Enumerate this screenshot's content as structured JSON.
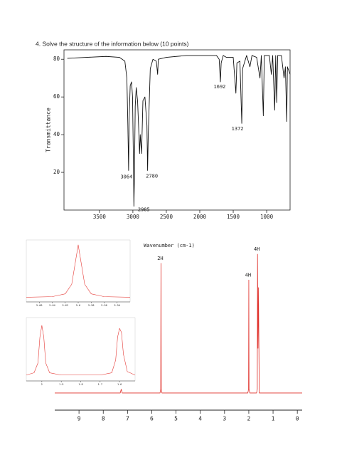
{
  "heading": "4. Solve the structure of the information below (10 points)",
  "chart_data": [
    {
      "type": "line",
      "xlabel": "Wavenumber (cm-1)",
      "ylabel": "Transmittance",
      "xlim": [
        4030,
        650
      ],
      "ylim": [
        0,
        85
      ],
      "xticks": [
        3500,
        3000,
        2500,
        2000,
        1500,
        1000
      ],
      "yticks": [
        20,
        40,
        60,
        80
      ],
      "color": "#111111",
      "x": [
        3980,
        3700,
        3400,
        3200,
        3120,
        3090,
        3075,
        3064,
        3055,
        3040,
        3020,
        3005,
        2990,
        2985,
        2978,
        2965,
        2950,
        2930,
        2915,
        2900,
        2890,
        2870,
        2850,
        2820,
        2790,
        2780,
        2770,
        2740,
        2700,
        2650,
        2630,
        2620,
        2500,
        2200,
        1900,
        1750,
        1710,
        1692,
        1680,
        1650,
        1600,
        1500,
        1460,
        1445,
        1400,
        1372,
        1360,
        1300,
        1250,
        1220,
        1150,
        1100,
        1080,
        1050,
        1035,
        960,
        930,
        910,
        880,
        865,
        850,
        835,
        780,
        740,
        720,
        700,
        690,
        660,
        650
      ],
      "values": [
        80.5,
        81,
        81.5,
        81,
        79,
        70,
        45,
        21,
        50,
        66,
        68,
        60,
        20,
        2,
        15,
        55,
        65,
        58,
        45,
        30,
        40,
        30,
        58,
        60,
        45,
        21,
        40,
        75,
        80,
        79,
        72,
        80,
        81,
        82,
        82,
        82,
        80,
        68,
        78,
        82,
        81,
        81,
        62,
        78,
        79,
        46,
        75,
        82,
        76,
        82,
        81,
        70,
        82,
        50,
        82,
        82,
        72,
        82,
        53,
        82,
        57,
        82,
        82,
        70,
        76,
        47,
        76,
        73,
        72
      ],
      "peak_labels": [
        3064,
        2780,
        2985,
        1692,
        1372
      ]
    },
    {
      "type": "line",
      "xlim": [
        10,
        -0.2
      ],
      "ylim": [
        0,
        100
      ],
      "xticks": [
        9,
        8,
        7,
        6,
        5,
        4,
        3,
        2,
        1,
        0
      ],
      "color": "#e0302a",
      "x": [
        10,
        7.3,
        7.26,
        7.22,
        5.66,
        5.63,
        5.62,
        5.61,
        5.58,
        2.04,
        2.01,
        2.0,
        1.99,
        1.96,
        1.68,
        1.65,
        1.64,
        1.62,
        1.6,
        1.57,
        -0.2
      ],
      "values": [
        0.5,
        0.5,
        3,
        0.5,
        0.5,
        3,
        86,
        3,
        0.5,
        0.5,
        3,
        75,
        3,
        0.5,
        0.5,
        3,
        92,
        30,
        70,
        0.5,
        0.5
      ],
      "peak_labels": [
        {
          "x": 5.62,
          "label": "2H"
        },
        {
          "x": 2.0,
          "label": "4H"
        },
        {
          "x": 1.64,
          "label": "4H"
        }
      ]
    },
    {
      "type": "line",
      "xlim": [
        5.68,
        5.52
      ],
      "ylim": [
        0,
        100
      ],
      "xticks": [
        5.66,
        5.64,
        5.62,
        5.6,
        5.58,
        5.56,
        5.54
      ],
      "color": "#e53935",
      "x": [
        5.68,
        5.64,
        5.62,
        5.61,
        5.605,
        5.6,
        5.595,
        5.59,
        5.58,
        5.56,
        5.52
      ],
      "values": [
        2,
        3,
        8,
        25,
        60,
        95,
        60,
        25,
        8,
        3,
        2
      ]
    },
    {
      "type": "line",
      "xlim": [
        2.08,
        1.52
      ],
      "ylim": [
        0,
        100
      ],
      "xticks": [
        2,
        1.9,
        1.8,
        1.7,
        1.6
      ],
      "color": "#e53935",
      "x": [
        2.08,
        2.04,
        2.02,
        2.01,
        2.0,
        1.99,
        1.98,
        1.96,
        1.9,
        1.7,
        1.64,
        1.62,
        1.61,
        1.6,
        1.59,
        1.58,
        1.56,
        1.52
      ],
      "values": [
        4,
        8,
        25,
        70,
        90,
        70,
        25,
        8,
        4,
        4,
        8,
        30,
        70,
        85,
        78,
        40,
        10,
        4
      ]
    }
  ]
}
